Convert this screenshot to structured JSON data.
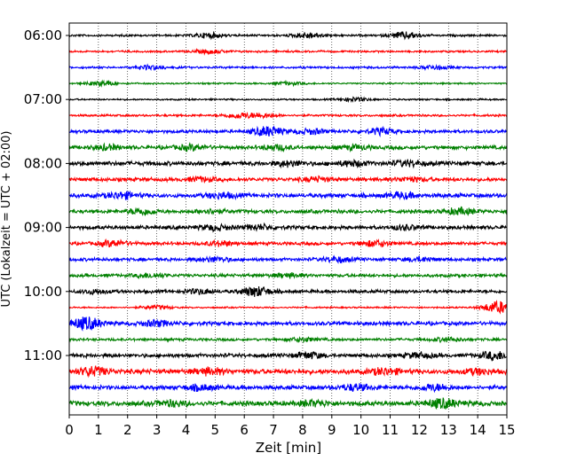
{
  "chart_data": {
    "type": "line",
    "title": "",
    "xlabel": "Zeit  [min]",
    "ylabel": "UTC (Lokalzeit = UTC + 02:00)",
    "xlim": [
      0,
      15
    ],
    "x_ticks": [
      0,
      1,
      2,
      3,
      4,
      5,
      6,
      7,
      8,
      9,
      10,
      11,
      12,
      13,
      14,
      15
    ],
    "x_grid": "dotted",
    "y_tick_labels": [
      "06:00",
      "07:00",
      "08:00",
      "09:00",
      "10:00",
      "11:00"
    ],
    "trace_minutes_per_line": 15,
    "trace_colors": [
      "#000000",
      "#ff0000",
      "#0000ff",
      "#008000"
    ],
    "traces": [
      {
        "start": "06:00",
        "color": "#000000",
        "amplitude": 0.2,
        "bursts": [
          {
            "t": 4.8,
            "a": 0.5
          },
          {
            "t": 8.2,
            "a": 0.6
          },
          {
            "t": 11.5,
            "a": 0.7
          }
        ]
      },
      {
        "start": "06:15",
        "color": "#ff0000",
        "amplitude": 0.18,
        "bursts": [
          {
            "t": 4.8,
            "a": 0.4
          }
        ]
      },
      {
        "start": "06:30",
        "color": "#0000ff",
        "amplitude": 0.2,
        "bursts": [
          {
            "t": 2.8,
            "a": 0.4
          },
          {
            "t": 12.5,
            "a": 0.4
          }
        ]
      },
      {
        "start": "06:45",
        "color": "#008000",
        "amplitude": 0.15,
        "bursts": [
          {
            "t": 1.1,
            "a": 0.5
          },
          {
            "t": 7.5,
            "a": 0.3
          }
        ]
      },
      {
        "start": "07:00",
        "color": "#000000",
        "amplitude": 0.15,
        "bursts": [
          {
            "t": 9.8,
            "a": 0.4
          }
        ]
      },
      {
        "start": "07:15",
        "color": "#ff0000",
        "amplitude": 0.2,
        "bursts": [
          {
            "t": 5.8,
            "a": 0.5
          },
          {
            "t": 6.6,
            "a": 0.4
          }
        ]
      },
      {
        "start": "07:30",
        "color": "#0000ff",
        "amplitude": 0.3,
        "bursts": [
          {
            "t": 6.8,
            "a": 1.0
          },
          {
            "t": 10.7,
            "a": 0.6
          },
          {
            "t": 8.3,
            "a": 0.5
          }
        ]
      },
      {
        "start": "07:45",
        "color": "#008000",
        "amplitude": 0.35,
        "bursts": [
          {
            "t": 1.3,
            "a": 0.5
          },
          {
            "t": 4.2,
            "a": 0.5
          },
          {
            "t": 7.1,
            "a": 0.5
          },
          {
            "t": 9.8,
            "a": 0.4
          }
        ]
      },
      {
        "start": "08:00",
        "color": "#000000",
        "amplitude": 0.4,
        "bursts": [
          {
            "t": 7.5,
            "a": 0.5
          },
          {
            "t": 9.7,
            "a": 0.5
          },
          {
            "t": 11.6,
            "a": 0.5
          }
        ]
      },
      {
        "start": "08:15",
        "color": "#ff0000",
        "amplitude": 0.35,
        "bursts": [
          {
            "t": 4.5,
            "a": 0.4
          },
          {
            "t": 8.5,
            "a": 0.4
          },
          {
            "t": 11.7,
            "a": 0.4
          }
        ]
      },
      {
        "start": "08:30",
        "color": "#0000ff",
        "amplitude": 0.4,
        "bursts": [
          {
            "t": 1.8,
            "a": 0.6
          },
          {
            "t": 5.2,
            "a": 0.5
          },
          {
            "t": 11.4,
            "a": 0.5
          }
        ]
      },
      {
        "start": "08:45",
        "color": "#008000",
        "amplitude": 0.35,
        "bursts": [
          {
            "t": 2.5,
            "a": 0.6
          },
          {
            "t": 4.8,
            "a": 0.4
          },
          {
            "t": 13.4,
            "a": 0.6
          }
        ]
      },
      {
        "start": "09:00",
        "color": "#000000",
        "amplitude": 0.35,
        "bursts": [
          {
            "t": 5.0,
            "a": 0.5
          },
          {
            "t": 6.5,
            "a": 0.5
          },
          {
            "t": 11.5,
            "a": 0.4
          }
        ]
      },
      {
        "start": "09:15",
        "color": "#ff0000",
        "amplitude": 0.3,
        "bursts": [
          {
            "t": 1.5,
            "a": 0.6
          },
          {
            "t": 5.2,
            "a": 0.5
          },
          {
            "t": 10.5,
            "a": 0.6
          }
        ]
      },
      {
        "start": "09:30",
        "color": "#0000ff",
        "amplitude": 0.3,
        "bursts": [
          {
            "t": 5.0,
            "a": 0.5
          },
          {
            "t": 9.2,
            "a": 0.5
          },
          {
            "t": 12.0,
            "a": 0.4
          }
        ]
      },
      {
        "start": "09:45",
        "color": "#008000",
        "amplitude": 0.3,
        "bursts": [
          {
            "t": 2.8,
            "a": 0.4
          },
          {
            "t": 7.5,
            "a": 0.4
          }
        ]
      },
      {
        "start": "10:00",
        "color": "#000000",
        "amplitude": 0.3,
        "bursts": [
          {
            "t": 6.4,
            "a": 1.0
          },
          {
            "t": 4.5,
            "a": 0.5
          },
          {
            "t": 0.9,
            "a": 0.4
          }
        ]
      },
      {
        "start": "10:15",
        "color": "#ff0000",
        "amplitude": 0.15,
        "bursts": [
          {
            "t": 14.7,
            "a": 1.3
          },
          {
            "t": 3.0,
            "a": 0.4
          }
        ]
      },
      {
        "start": "10:30",
        "color": "#0000ff",
        "amplitude": 0.35,
        "bursts": [
          {
            "t": 0.6,
            "a": 1.3
          },
          {
            "t": 3.0,
            "a": 0.6
          }
        ]
      },
      {
        "start": "10:45",
        "color": "#008000",
        "amplitude": 0.25,
        "bursts": [
          {
            "t": 8.0,
            "a": 0.4
          },
          {
            "t": 13.0,
            "a": 0.4
          }
        ]
      },
      {
        "start": "11:00",
        "color": "#000000",
        "amplitude": 0.35,
        "bursts": [
          {
            "t": 8.2,
            "a": 0.6
          },
          {
            "t": 12.0,
            "a": 0.5
          },
          {
            "t": 14.6,
            "a": 0.8
          }
        ]
      },
      {
        "start": "11:15",
        "color": "#ff0000",
        "amplitude": 0.45,
        "bursts": [
          {
            "t": 0.8,
            "a": 0.9
          },
          {
            "t": 4.8,
            "a": 0.6
          },
          {
            "t": 10.8,
            "a": 0.6
          },
          {
            "t": 14.0,
            "a": 0.5
          }
        ]
      },
      {
        "start": "11:30",
        "color": "#0000ff",
        "amplitude": 0.4,
        "bursts": [
          {
            "t": 4.5,
            "a": 0.5
          },
          {
            "t": 9.8,
            "a": 0.6
          },
          {
            "t": 12.5,
            "a": 0.6
          }
        ]
      },
      {
        "start": "11:45",
        "color": "#008000",
        "amplitude": 0.45,
        "bursts": [
          {
            "t": 3.5,
            "a": 0.5
          },
          {
            "t": 8.4,
            "a": 0.5
          },
          {
            "t": 12.8,
            "a": 0.9
          }
        ]
      }
    ]
  }
}
